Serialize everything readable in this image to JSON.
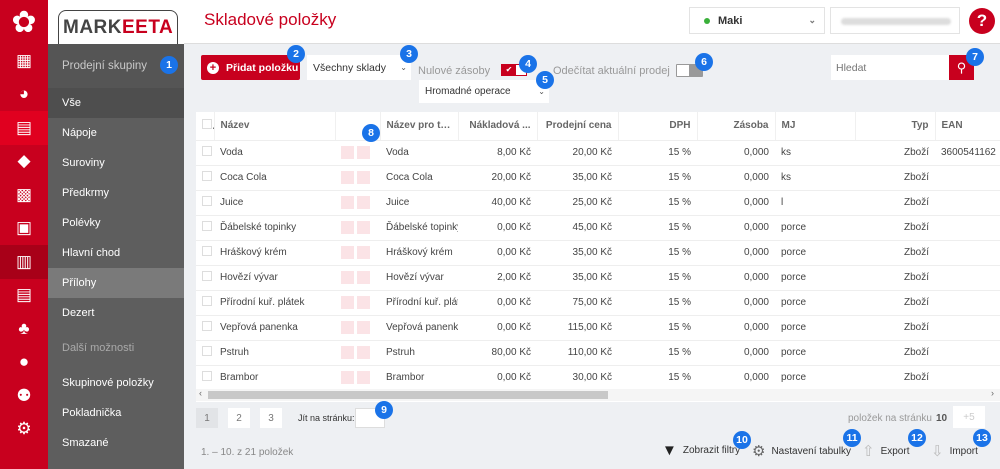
{
  "app": {
    "brand_prefix": "MARK",
    "brand_suffix": "EETA",
    "title": "Skladové položky",
    "store": "Maki",
    "help": "?"
  },
  "colors": {
    "accent": "#c8001e",
    "sidebar": "#5e5e5e",
    "badge": "#1a73e8"
  },
  "iconbar": [
    "flower-logo",
    "dashboard-icon",
    "chart-pie-icon",
    "inbox-icon",
    "cube-icon",
    "calculator-icon",
    "cash-icon",
    "clipboard-icon",
    "register-icon",
    "cubes-icon",
    "user-icon",
    "users-icon",
    "gear-icon"
  ],
  "sidebar": {
    "heading": "Prodejní skupiny",
    "items": [
      "Vše",
      "Nápoje",
      "Suroviny",
      "Předkrmy",
      "Polévky",
      "Hlavní chod",
      "Přílohy",
      "Dezert"
    ],
    "more_heading": "Další možnosti",
    "more": [
      "Skupinové položky",
      "Pokladnička",
      "Smazané"
    ],
    "selected": "Přílohy"
  },
  "toolbar": {
    "add": "Přidat položku",
    "warehouse": "Všechny sklady",
    "zero_stock": "Nulové zásoby",
    "zero_stock_checked": true,
    "bulk": "Hromadné operace",
    "subtract_sale": "Odečítat aktuální prodej",
    "subtract_sale_on": false,
    "search_placeholder": "Hledat"
  },
  "table": {
    "columns": [
      "Název",
      "",
      "Název pro tisk",
      "Nákladová ...",
      "Prodejní cena",
      "DPH",
      "Zásoba",
      "MJ",
      "Typ",
      "EAN"
    ],
    "rows": [
      [
        "Voda",
        "Voda",
        "8,00 Kč",
        "20,00 Kč",
        "15 %",
        "0,000",
        "ks",
        "Zboží",
        "3600541162"
      ],
      [
        "Coca Cola",
        "Coca Cola",
        "20,00 Kč",
        "35,00 Kč",
        "15 %",
        "0,000",
        "ks",
        "Zboží",
        ""
      ],
      [
        "Juice",
        "Juice",
        "40,00 Kč",
        "25,00 Kč",
        "15 %",
        "0,000",
        "l",
        "Zboží",
        ""
      ],
      [
        "Ďábelské topinky",
        "Ďábelské topinky",
        "0,00 Kč",
        "45,00 Kč",
        "15 %",
        "0,000",
        "porce",
        "Zboží",
        ""
      ],
      [
        "Hráškový krém",
        "Hráškový krém",
        "0,00 Kč",
        "35,00 Kč",
        "15 %",
        "0,000",
        "porce",
        "Zboží",
        ""
      ],
      [
        "Hovězí vývar",
        "Hovězí vývar",
        "2,00 Kč",
        "35,00 Kč",
        "15 %",
        "0,000",
        "porce",
        "Zboží",
        ""
      ],
      [
        "Přírodní kuř. plátek",
        "Přírodní kuř. pláte",
        "0,00 Kč",
        "75,00 Kč",
        "15 %",
        "0,000",
        "porce",
        "Zboží",
        ""
      ],
      [
        "Vepřová panenka",
        "Vepřová panenka",
        "0,00 Kč",
        "115,00 Kč",
        "15 %",
        "0,000",
        "porce",
        "Zboží",
        ""
      ],
      [
        "Pstruh",
        "Pstruh",
        "80,00 Kč",
        "110,00 Kč",
        "15 %",
        "0,000",
        "porce",
        "Zboží",
        ""
      ],
      [
        "Brambor",
        "Brambor",
        "0,00 Kč",
        "30,00 Kč",
        "15 %",
        "0,000",
        "porce",
        "Zboží",
        ""
      ]
    ]
  },
  "pagination": {
    "pages": [
      "1",
      "2",
      "3"
    ],
    "current": "1",
    "goto": "Jít na stránku:",
    "per_page_label": "položek na stránku",
    "per_page": "10",
    "more": "+5",
    "count": "1. – 10. z 21 položek"
  },
  "footer": {
    "filters": "Zobrazit filtry",
    "settings": "Nastavení tabulky",
    "export": "Export",
    "import": "Import"
  },
  "badges": [
    "1",
    "2",
    "3",
    "4",
    "5",
    "6",
    "7",
    "8",
    "9",
    "10",
    "11",
    "12",
    "13"
  ]
}
